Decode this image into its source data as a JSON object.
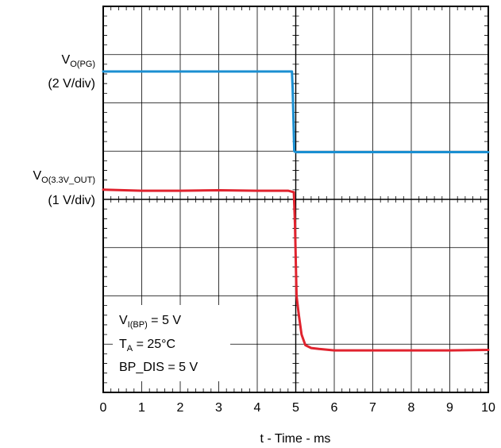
{
  "chart_data": {
    "type": "line",
    "x": [
      0,
      1,
      2,
      3,
      4,
      5,
      6,
      7,
      8,
      9,
      10
    ],
    "x_tick_labels": [
      "0",
      "1",
      "2",
      "3",
      "4",
      "5",
      "6",
      "7",
      "8",
      "9",
      "10"
    ],
    "xlabel": "t - Time - ms",
    "xlim": [
      0,
      10
    ],
    "ylim": [
      0,
      8
    ],
    "y_unit": "divisions",
    "grid": true,
    "series": [
      {
        "label_main": "V",
        "label_sub": "O(PG)",
        "label_scale": "(2 V/div)",
        "color": "#1b8fd1",
        "x": [
          0,
          4.9,
          4.92,
          4.96,
          5.0,
          5.5,
          10
        ],
        "y": [
          6.65,
          6.65,
          6.3,
          5.0,
          4.98,
          4.98,
          4.98
        ]
      },
      {
        "label_main": "V",
        "label_sub": "O(3.3V_OUT)",
        "label_scale": "(1 V/div)",
        "color": "#e0232e",
        "x": [
          0,
          1,
          2,
          3,
          4,
          4.8,
          4.95,
          4.98,
          5.02,
          5.08,
          5.15,
          5.25,
          5.4,
          5.6,
          6.0,
          7.0,
          8.0,
          9.0,
          10
        ],
        "y": [
          4.2,
          4.18,
          4.18,
          4.19,
          4.18,
          4.18,
          4.15,
          3.5,
          2.0,
          1.6,
          1.2,
          0.98,
          0.92,
          0.9,
          0.87,
          0.87,
          0.87,
          0.87,
          0.88
        ]
      }
    ],
    "annotations": {
      "line1_main": "V",
      "line1_sub": "I(BP)",
      "line1_tail": " = 5 V",
      "line2_main": "T",
      "line2_sub": "A",
      "line2_tail": " = 25°C",
      "line3": "BP_DIS = 5 V"
    }
  }
}
